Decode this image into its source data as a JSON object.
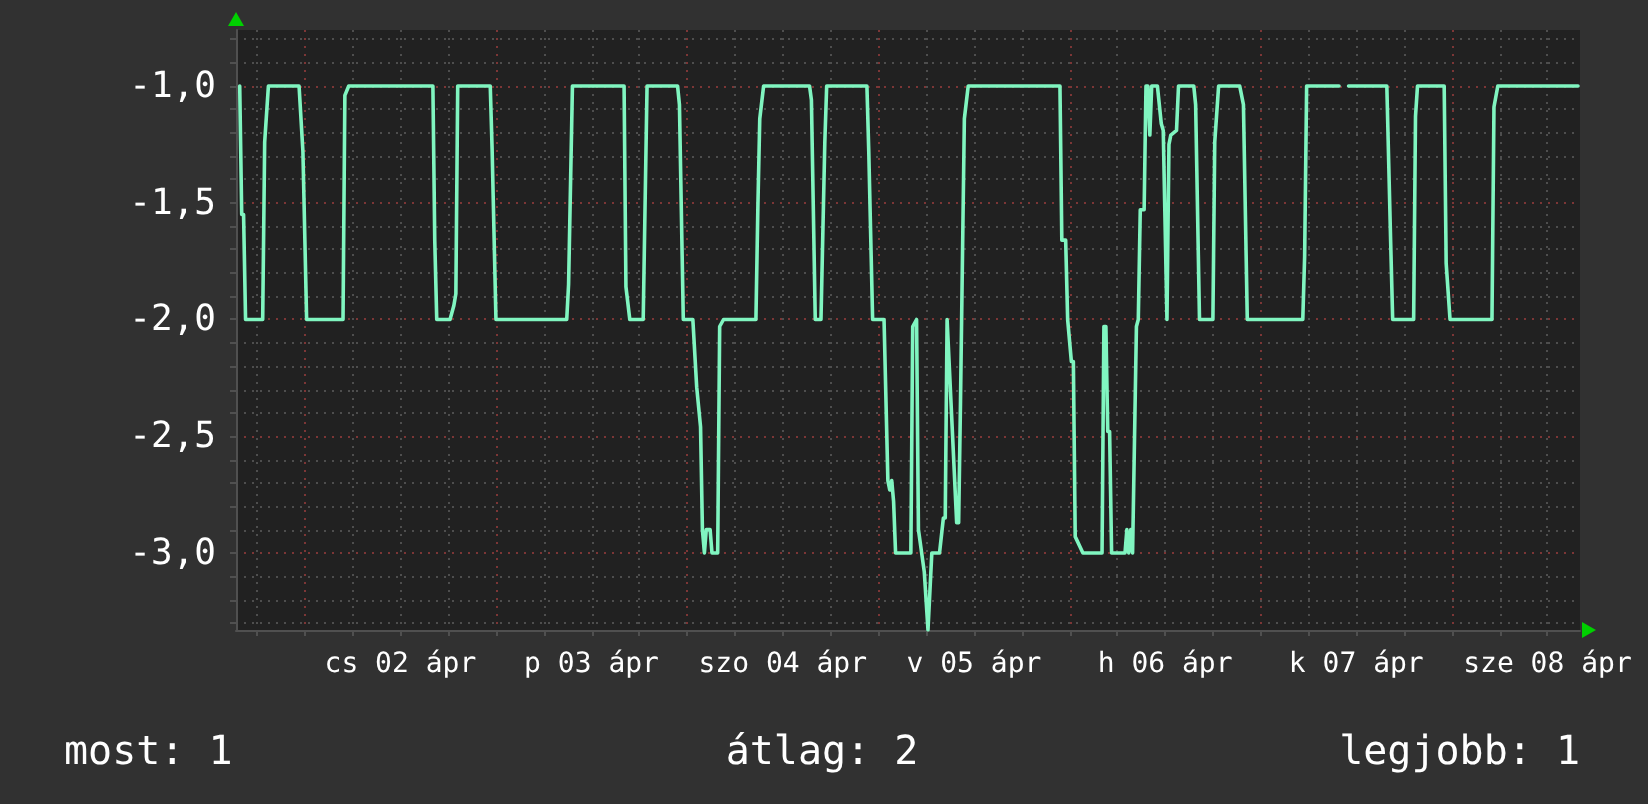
{
  "chart_data": {
    "type": "line",
    "color": "#80f5c0",
    "marker": "none",
    "grid": true,
    "xlim": [
      "--04-01T15:22",
      "--04-08T16:05"
    ],
    "xticks": [
      {
        "value": "--04-01T18:00",
        "label": null
      },
      {
        "value": "--04-02T00:00",
        "label": null
      },
      {
        "value": "--04-02T06:00",
        "label": null
      },
      {
        "value": "--04-02T12:00",
        "label": "cs 02 ápr"
      },
      {
        "value": "--04-02T18:00",
        "label": null
      },
      {
        "value": "--04-03T00:00",
        "label": null
      },
      {
        "value": "--04-03T06:00",
        "label": null
      },
      {
        "value": "--04-03T12:00",
        "label": "p 03 ápr"
      },
      {
        "value": "--04-03T18:00",
        "label": null
      },
      {
        "value": "--04-04T00:00",
        "label": null
      },
      {
        "value": "--04-04T06:00",
        "label": null
      },
      {
        "value": "--04-04T12:00",
        "label": "szo 04 ápr"
      },
      {
        "value": "--04-04T18:00",
        "label": null
      },
      {
        "value": "--04-05T00:00",
        "label": null
      },
      {
        "value": "--04-05T06:00",
        "label": null
      },
      {
        "value": "--04-05T12:00",
        "label": "v 05 ápr"
      },
      {
        "value": "--04-05T18:00",
        "label": null
      },
      {
        "value": "--04-06T00:00",
        "label": null
      },
      {
        "value": "--04-06T06:00",
        "label": null
      },
      {
        "value": "--04-06T12:00",
        "label": "h 06 ápr"
      },
      {
        "value": "--04-06T18:00",
        "label": null
      },
      {
        "value": "--04-07T00:00",
        "label": null
      },
      {
        "value": "--04-07T06:00",
        "label": null
      },
      {
        "value": "--04-07T12:00",
        "label": "k 07 ápr"
      },
      {
        "value": "--04-07T18:00",
        "label": null
      },
      {
        "value": "--04-08T00:00",
        "label": null
      },
      {
        "value": "--04-08T06:00",
        "label": null
      },
      {
        "value": "--04-08T12:00",
        "label": "sze 08 ápr"
      }
    ],
    "ylim": [
      -3.33,
      -0.76
    ],
    "yticks": [
      {
        "value": -3.3,
        "label": null
      },
      {
        "value": -3.2,
        "label": null
      },
      {
        "value": -3.1,
        "label": null
      },
      {
        "value": -3,
        "label": "-3,0"
      },
      {
        "value": -2.9,
        "label": null
      },
      {
        "value": -2.8,
        "label": null
      },
      {
        "value": -2.7,
        "label": null
      },
      {
        "value": -2.6,
        "label": null
      },
      {
        "value": -2.5,
        "label": "-2,5"
      },
      {
        "value": -2.4,
        "label": null
      },
      {
        "value": -2.3,
        "label": null
      },
      {
        "value": -2.2,
        "label": null
      },
      {
        "value": -2.1,
        "label": null
      },
      {
        "value": -2,
        "label": "-2,0"
      },
      {
        "value": -1.9,
        "label": null
      },
      {
        "value": -1.8,
        "label": null
      },
      {
        "value": -1.7,
        "label": null
      },
      {
        "value": -1.6,
        "label": null
      },
      {
        "value": -1.5,
        "label": "-1,5"
      },
      {
        "value": -1.4,
        "label": null
      },
      {
        "value": -1.3,
        "label": null
      },
      {
        "value": -1.2,
        "label": null
      },
      {
        "value": -1.1,
        "label": null
      },
      {
        "value": -1,
        "label": "-1,0"
      },
      {
        "value": -0.9,
        "label": null
      },
      {
        "value": -0.8,
        "label": null
      }
    ],
    "x": [
      "--04-01T15:50",
      "--04-01T16:05",
      "--04-01T16:19",
      "--04-01T16:34",
      "--04-01T18:43",
      "--04-01T18:58",
      "--04-01T19:26",
      "--04-01T23:17",
      "--04-01T23:46",
      "--04-02T00:14",
      "--04-02T04:48",
      "--04-02T05:02",
      "--04-02T05:31",
      "--04-02T16:05",
      "--04-02T16:19",
      "--04-02T16:34",
      "--04-02T18:14",
      "--04-02T18:43",
      "--04-02T18:58",
      "--04-02T19:12",
      "--04-02T23:17",
      "--04-02T23:31",
      "--04-03T00:00",
      "--04-03T08:53",
      "--04-03T09:07",
      "--04-03T09:36",
      "--04-03T16:05",
      "--04-03T16:19",
      "--04-03T16:48",
      "--04-03T18:29",
      "--04-03T18:58",
      "--04-03T22:48",
      "--04-03T23:02",
      "--04-03T23:31",
      "--04-04T00:43",
      "--04-04T01:12",
      "--04-04T01:41",
      "--04-04T01:55",
      "--04-04T02:10",
      "--04-04T02:24",
      "--04-04T02:53",
      "--04-04T03:07",
      "--04-04T03:50",
      "--04-04T04:05",
      "--04-04T04:34",
      "--04-04T08:38",
      "--04-04T08:53",
      "--04-04T09:07",
      "--04-04T09:36",
      "--04-04T15:22",
      "--04-04T15:36",
      "--04-04T16:05",
      "--04-04T16:48",
      "--04-04T17:17",
      "--04-04T17:31",
      "--04-04T22:34",
      "--04-04T22:48",
      "--04-04T23:17",
      "--04-05T00:43",
      "--04-05T01:12",
      "--04-05T01:26",
      "--04-05T01:41",
      "--04-05T01:55",
      "--04-05T02:10",
      "--04-05T04:05",
      "--04-05T04:19",
      "--04-05T04:48",
      "--04-05T05:02",
      "--04-05T05:46",
      "--04-05T06:14",
      "--04-05T06:43",
      "--04-05T07:41",
      "--04-05T08:10",
      "--04-05T08:24",
      "--04-05T08:38",
      "--04-05T09:50",
      "--04-05T10:05",
      "--04-05T10:19",
      "--04-05T10:48",
      "--04-05T11:17",
      "--04-05T22:48",
      "--04-05T23:02",
      "--04-05T23:31",
      "--04-05T23:46",
      "--04-06T00:14",
      "--04-06T00:29",
      "--04-06T00:43",
      "--04-06T01:41",
      "--04-06T04:05",
      "--04-06T04:19",
      "--04-06T04:34",
      "--04-06T04:48",
      "--04-06T05:02",
      "--04-06T05:17",
      "--04-06T06:58",
      "--04-06T07:12",
      "--04-06T07:26",
      "--04-06T07:41",
      "--04-06T07:55",
      "--04-06T08:24",
      "--04-06T08:38",
      "--04-06T08:53",
      "--04-06T09:22",
      "--04-06T09:36",
      "--04-06T09:50",
      "--04-06T10:05",
      "--04-06T10:19",
      "--04-06T11:02",
      "--04-06T11:31",
      "--04-06T11:46",
      "--04-06T12:14",
      "--04-06T12:29",
      "--04-06T12:43",
      "--04-06T13:26",
      "--04-06T13:41",
      "--04-06T15:36",
      "--04-06T15:50",
      "--04-06T16:19",
      "--04-06T18:00",
      "--04-06T18:14",
      "--04-06T18:43",
      "--04-06T21:22",
      "--04-06T21:50",
      "--04-06T22:19",
      "--04-07T05:17",
      "--04-07T05:31",
      "--04-07T05:46",
      "--04-07T09:50",
      "--04-07T10:19",
      "--04-07T11:02",
      "--04-07T15:50",
      "--04-07T16:19",
      "--04-07T16:34",
      "--04-07T19:12",
      "--04-07T19:26",
      "--04-07T19:41",
      "--04-07T23:02",
      "--04-07T23:17",
      "--04-07T23:46",
      "--04-08T05:02",
      "--04-08T05:17",
      "--04-08T05:46",
      "--04-08T15:50"
    ],
    "values": [
      -1.0,
      -1.55,
      -1.55,
      -2.0,
      -2.0,
      -1.24,
      -1.0,
      -1.0,
      -1.28,
      -2.0,
      -2.0,
      -1.04,
      -1.0,
      -1.0,
      -1.66,
      -2.0,
      -2.0,
      -1.94,
      -1.89,
      -1.0,
      -1.0,
      -1.27,
      -2.0,
      -2.0,
      -1.85,
      -1.0,
      -1.0,
      -1.86,
      -2.0,
      -2.0,
      -1.0,
      -1.0,
      -1.08,
      -2.0,
      -2.0,
      -2.29,
      -2.46,
      -2.9,
      -3.0,
      -2.9,
      -2.9,
      -3.0,
      -3.0,
      -2.03,
      -2.0,
      -2.0,
      -1.51,
      -1.14,
      -1.0,
      -1.0,
      -1.06,
      -2.0,
      -2.0,
      -1.24,
      -1.0,
      -1.0,
      -1.28,
      -2.0,
      -2.0,
      -2.69,
      -2.73,
      -2.69,
      -2.78,
      -3.0,
      -3.0,
      -2.03,
      -2.0,
      -2.9,
      -3.08,
      -3.33,
      -3.0,
      -3.0,
      -2.85,
      -2.85,
      -2.0,
      -2.87,
      -2.87,
      -2.35,
      -1.14,
      -1.0,
      -1.0,
      -1.66,
      -1.66,
      -2.0,
      -2.18,
      -2.18,
      -2.93,
      -3.0,
      -3.0,
      -2.03,
      -2.03,
      -2.48,
      -2.48,
      -3.0,
      -3.0,
      -2.9,
      -3.0,
      -2.9,
      -3.0,
      -2.03,
      -2.0,
      -1.53,
      -1.53,
      -1.0,
      -1.0,
      -1.21,
      -1.0,
      -1.0,
      -1.16,
      -1.19,
      -2.0,
      -1.25,
      -1.21,
      -1.19,
      -1.0,
      -1.0,
      -1.08,
      -2.0,
      -2.0,
      -1.24,
      -1.0,
      -1.0,
      -1.08,
      -2.0,
      -2.0,
      -1.73,
      -1.0,
      -1.0,
      null,
      -1.0,
      -1.0,
      -1.67,
      -2.0,
      -2.0,
      -1.13,
      -1.0,
      -1.0,
      -1.76,
      -2.0,
      -2.0,
      -1.09,
      -1.0,
      -1.0
    ],
    "annotations": [
      "most: 1",
      "átlag: 2",
      "legjobb: 1"
    ]
  }
}
